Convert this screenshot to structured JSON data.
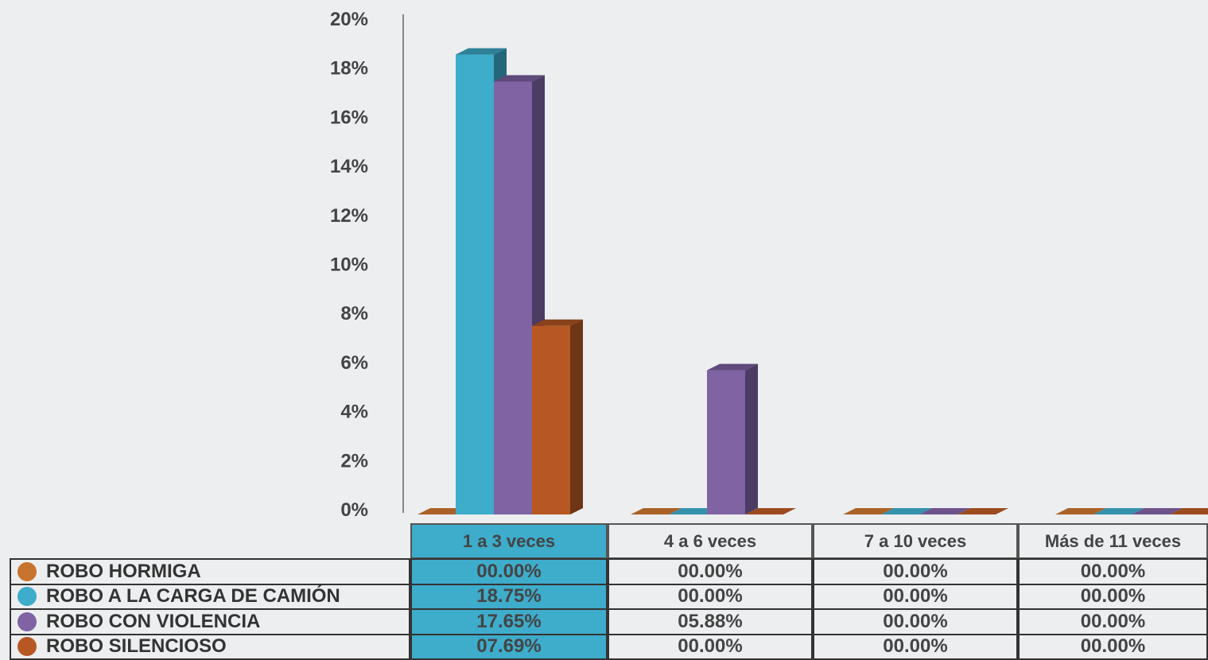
{
  "chart_data": {
    "type": "bar",
    "categories": [
      "1 a 3 veces",
      "4 a 6 veces",
      "7 a 10 veces",
      "Más de 11 veces"
    ],
    "series": [
      {
        "name": "ROBO HORMIGA",
        "color": "#c8732e",
        "values": [
          0.0,
          0.0,
          0.0,
          0.0
        ],
        "labels": [
          "00.00%",
          "00.00%",
          "00.00%",
          "00.00%"
        ]
      },
      {
        "name": "ROBO A LA CARGA DE CAMIÓN",
        "color": "#3eaccb",
        "values": [
          18.75,
          0.0,
          0.0,
          0.0
        ],
        "labels": [
          "18.75%",
          "00.00%",
          "00.00%",
          "00.00%"
        ]
      },
      {
        "name": "ROBO CON VIOLENCIA",
        "color": "#7f63a3",
        "values": [
          17.65,
          5.88,
          0.0,
          0.0
        ],
        "labels": [
          "17.65%",
          "05.88%",
          "00.00%",
          "00.00%"
        ]
      },
      {
        "name": "ROBO SILENCIOSO",
        "color": "#b75824",
        "values": [
          7.69,
          0.0,
          0.0,
          0.0
        ],
        "labels": [
          "07.69%",
          "00.00%",
          "00.00%",
          "00.00%"
        ]
      }
    ],
    "yticks": [
      "0%",
      "2%",
      "4%",
      "6%",
      "8%",
      "10%",
      "12%",
      "14%",
      "16%",
      "18%",
      "20%"
    ],
    "ylim": [
      0,
      20
    ],
    "highlight_category": "1 a 3 veces",
    "highlight_color": "#3eaccb",
    "legend": "table-below",
    "grid": false,
    "style": "3d-column"
  }
}
